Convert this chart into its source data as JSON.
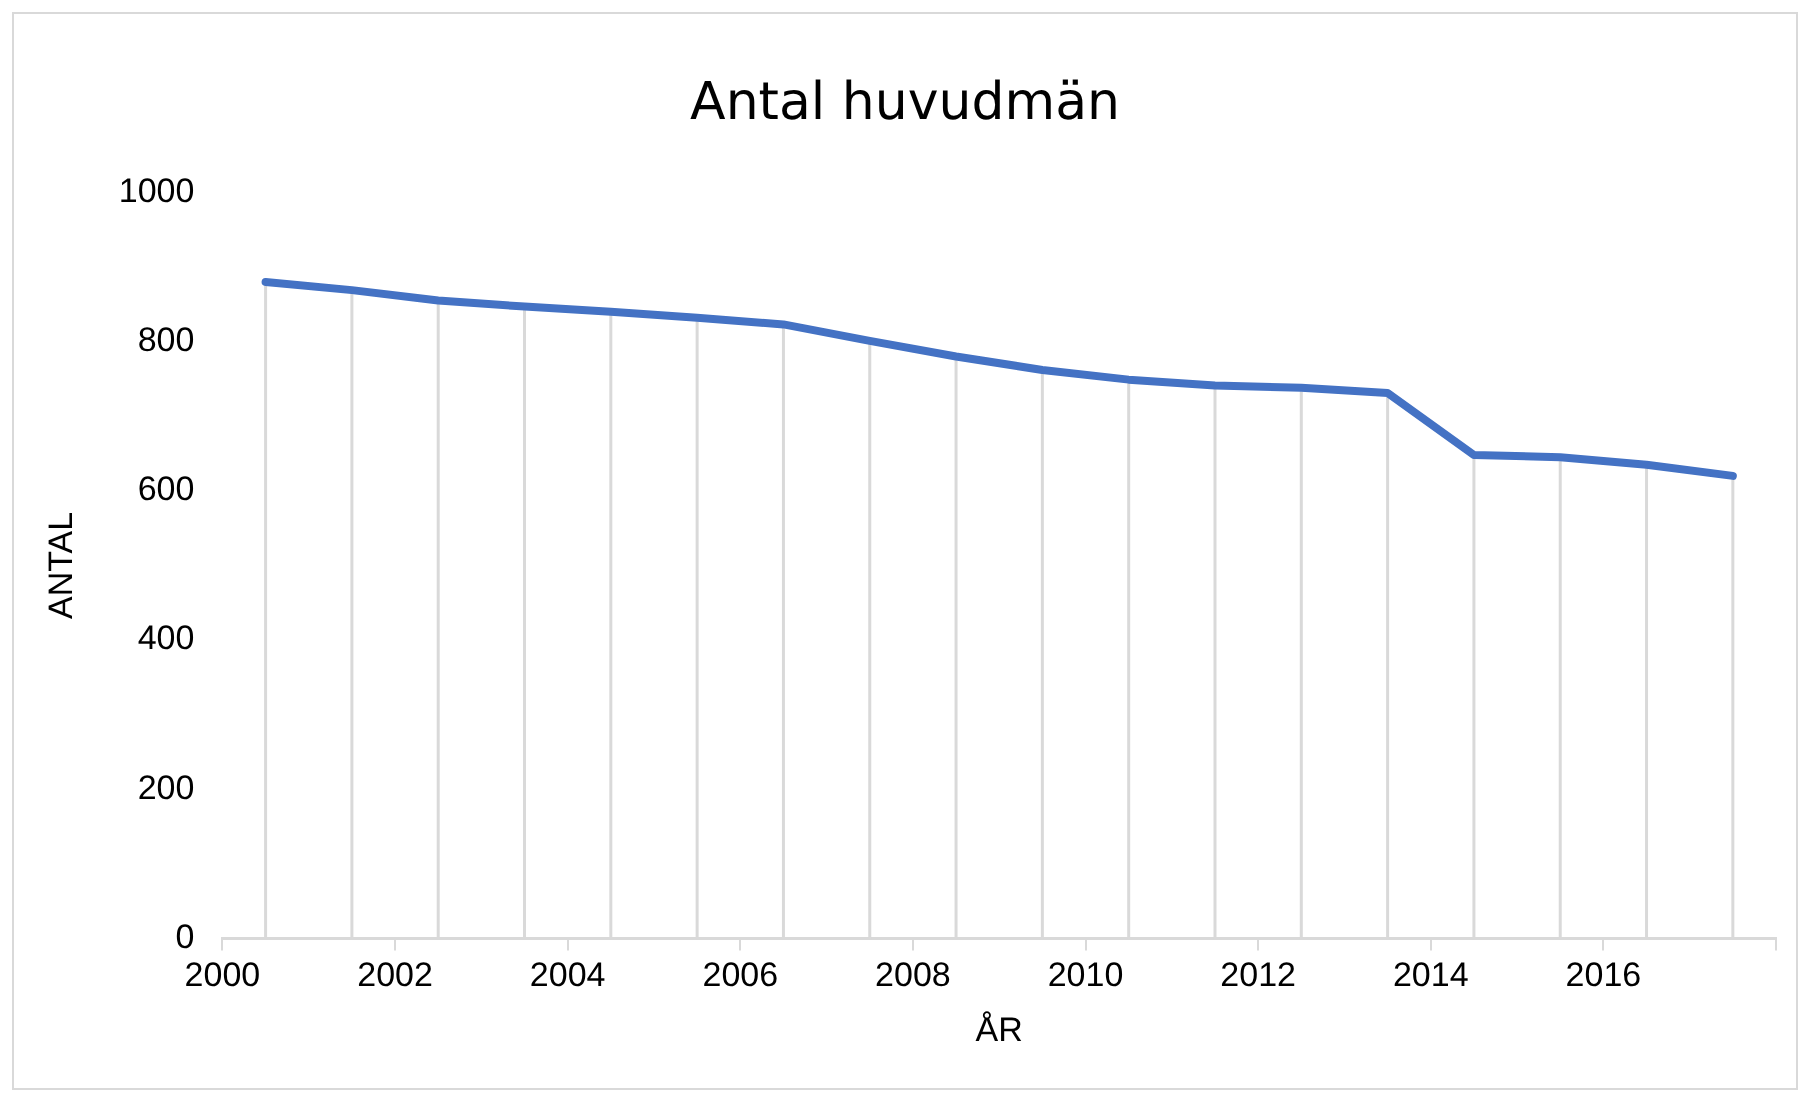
{
  "chart_data": {
    "type": "line",
    "title": "Antal huvudmän",
    "xlabel": "ÅR",
    "ylabel": "ANTAL",
    "x": [
      2000.5,
      2001.5,
      2002.5,
      2003.5,
      2004.5,
      2005.5,
      2006.5,
      2007.5,
      2008.5,
      2009.5,
      2010.5,
      2011.5,
      2012.5,
      2013.5,
      2014.5,
      2015.5,
      2016.5,
      2017.5
    ],
    "series": [
      {
        "color": "#4472c4",
        "values": [
          880,
          869,
          855,
          847,
          840,
          832,
          823,
          801,
          780,
          762,
          749,
          741,
          738,
          731,
          648,
          645,
          635,
          620
        ],
        "errors": [
          [
            0,
            880
          ],
          [
            0,
            869
          ],
          [
            0,
            855
          ],
          [
            0,
            847
          ],
          [
            0,
            840
          ],
          [
            0,
            832
          ],
          [
            0,
            823
          ],
          [
            0,
            801
          ],
          [
            0,
            780
          ],
          [
            0,
            762
          ],
          [
            0,
            749
          ],
          [
            0,
            741
          ],
          [
            0,
            738
          ],
          [
            0,
            731
          ],
          [
            0,
            648
          ],
          [
            0,
            645
          ],
          [
            0,
            635
          ],
          [
            0,
            620
          ]
        ]
      }
    ],
    "xlim": [
      2000,
      2018
    ],
    "xticks": [
      2000,
      2002,
      2004,
      2006,
      2008,
      2010,
      2012,
      2014,
      2016,
      {
        "value": 2018,
        "label": null
      }
    ],
    "ylim": [
      0,
      1000
    ],
    "yticks": [
      0,
      200,
      400,
      600,
      800,
      1000
    ],
    "grid": false,
    "legend": false,
    "marker": "none",
    "line_style": "solid"
  }
}
